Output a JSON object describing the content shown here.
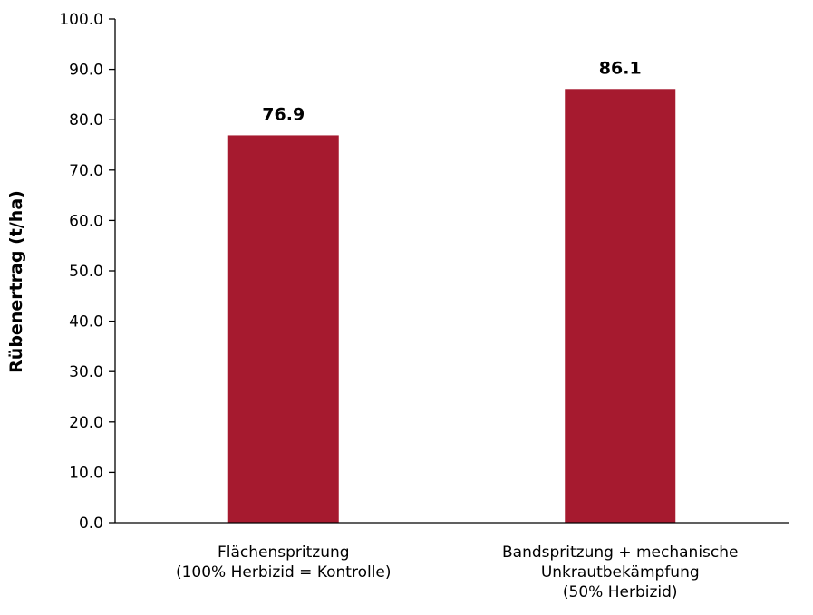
{
  "chart_data": {
    "type": "bar",
    "title": "",
    "xlabel": "",
    "ylabel": "Rübenertrag (t/ha)",
    "ylim": [
      0,
      100
    ],
    "ytick_step": 10,
    "ytick_labels": [
      "0.0",
      "10.0",
      "20.0",
      "30.0",
      "40.0",
      "50.0",
      "60.0",
      "70.0",
      "80.0",
      "90.0",
      "100.0"
    ],
    "grid": false,
    "legend": "none",
    "categories": [
      [
        "Flächenspritzung",
        "(100% Herbizid = Kontrolle)"
      ],
      [
        "Bandspritzung + mechanische",
        "Unkrautbekämpfung",
        "(50% Herbizid)"
      ]
    ],
    "values": [
      76.9,
      86.1
    ],
    "data_labels": [
      "76.9",
      "86.1"
    ],
    "bar_color": "#A61A2F",
    "axis_color": "#000000"
  }
}
